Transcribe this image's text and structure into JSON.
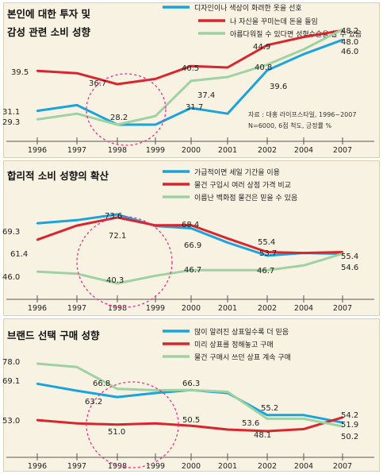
{
  "colors": {
    "blue": "#1ba3dc",
    "red": "#d8262e",
    "green": "#9fd2a3",
    "circle": "#e8318f",
    "panel_bg": "#f7f2e1",
    "axis": "#555555"
  },
  "chart_data": [
    {
      "type": "line",
      "title": "본인에 대한 투자 및 감성 관련 소비 성향",
      "title_lines": [
        "본인에 대한 투자 및",
        "감성 관련 소비 성향"
      ],
      "categories": [
        "1996",
        "1997",
        "1998",
        "1999",
        "2000",
        "2001",
        "2002",
        "2004",
        "2007"
      ],
      "ylim": [
        20,
        55
      ],
      "legend": "top-right",
      "grid": false,
      "series": [
        {
          "name": "디자인이나 색상이 화려한 옷을 선호",
          "color": "#1ba3dc",
          "values": [
            31.1,
            32.3,
            28.2,
            28.2,
            31.7,
            30.5,
            39.6,
            43.0,
            46.0
          ]
        },
        {
          "name": "나 자신을 꾸미는데 돈을 들임",
          "color": "#d8262e",
          "values": [
            39.5,
            39.0,
            36.7,
            37.8,
            40.5,
            40.2,
            44.9,
            46.6,
            48.0
          ]
        },
        {
          "name": "아름다워질 수 있다면 성형수술을 할 수 있음",
          "color": "#9fd2a3",
          "values": [
            29.3,
            30.5,
            28.2,
            30.0,
            37.4,
            38.2,
            40.8,
            44.0,
            48.2
          ]
        }
      ],
      "labels": [
        "31.1",
        "29.3",
        "39.5",
        "36.7",
        "28.2",
        "40.5",
        "37.4",
        "31.7",
        "44.9",
        "40.8",
        "39.6",
        "48.2",
        "48.0",
        "46.0"
      ],
      "note_lines": [
        "자료 : 대홍 라이프스타일, 1996~2007",
        "N=6000, 6점 척도, 긍정률 %"
      ]
    },
    {
      "type": "line",
      "title": "합리적 소비 성향의 확산",
      "title_lines": [
        "합리적 소비 성향의 확산"
      ],
      "categories": [
        "1996",
        "1997",
        "1998",
        "1999",
        "2000",
        "2001",
        "2002",
        "2004",
        "2007"
      ],
      "ylim": [
        35,
        80
      ],
      "legend": "top-right",
      "grid": false,
      "series": [
        {
          "name": "가급적이면 세일 기간을 이용",
          "color": "#1ba3dc",
          "values": [
            69.3,
            70.8,
            73.6,
            68.0,
            66.9,
            60.0,
            53.7,
            55.0,
            54.6
          ]
        },
        {
          "name": "물건 구입시 여러 상점 가격 비교",
          "color": "#d8262e",
          "values": [
            61.4,
            68.2,
            72.1,
            68.3,
            68.4,
            62.0,
            55.4,
            55.0,
            55.4
          ]
        },
        {
          "name": "이름난 백화점 물건은 믿을 수 있음",
          "color": "#9fd2a3",
          "values": [
            46.0,
            45.0,
            40.3,
            44.0,
            46.7,
            46.7,
            46.7,
            49.0,
            54.6
          ]
        }
      ],
      "labels": [
        "69.3",
        "61.4",
        "46.0",
        "73.6",
        "72.1",
        "40.3",
        "68.4",
        "66.9",
        "46.7",
        "55.4",
        "53.7",
        "46.7",
        "55.4",
        "54.6"
      ]
    },
    {
      "type": "line",
      "title": "브랜드 선택 구매 성향",
      "title_lines": [
        "브랜드 선택 구매 성향"
      ],
      "categories": [
        "1996",
        "1997",
        "1998",
        "1999",
        "2000",
        "2001",
        "2002",
        "2004",
        "2007"
      ],
      "ylim": [
        40,
        85
      ],
      "legend": "top-right",
      "grid": false,
      "series": [
        {
          "name": "많이 알려진 상표일수록 더 믿음",
          "color": "#1ba3dc",
          "values": [
            69.1,
            66.0,
            63.2,
            65.0,
            66.3,
            65.0,
            55.2,
            55.2,
            51.9
          ]
        },
        {
          "name": "미리 상표를 정해놓고 구매",
          "color": "#d8262e",
          "values": [
            53.0,
            51.5,
            51.0,
            51.5,
            50.5,
            48.8,
            48.1,
            49.0,
            54.2
          ]
        },
        {
          "name": "물건 구매시 쓰던 상표 계속 구매",
          "color": "#9fd2a3",
          "values": [
            78.0,
            76.5,
            66.8,
            66.2,
            66.3,
            65.5,
            53.6,
            53.6,
            50.2
          ]
        }
      ],
      "labels": [
        "78.0",
        "69.1",
        "53.0",
        "66.8",
        "63.2",
        "51.0",
        "66.3",
        "50.5",
        "55.2",
        "53.6",
        "48.1",
        "54.2",
        "51.9",
        "50.2"
      ]
    }
  ]
}
